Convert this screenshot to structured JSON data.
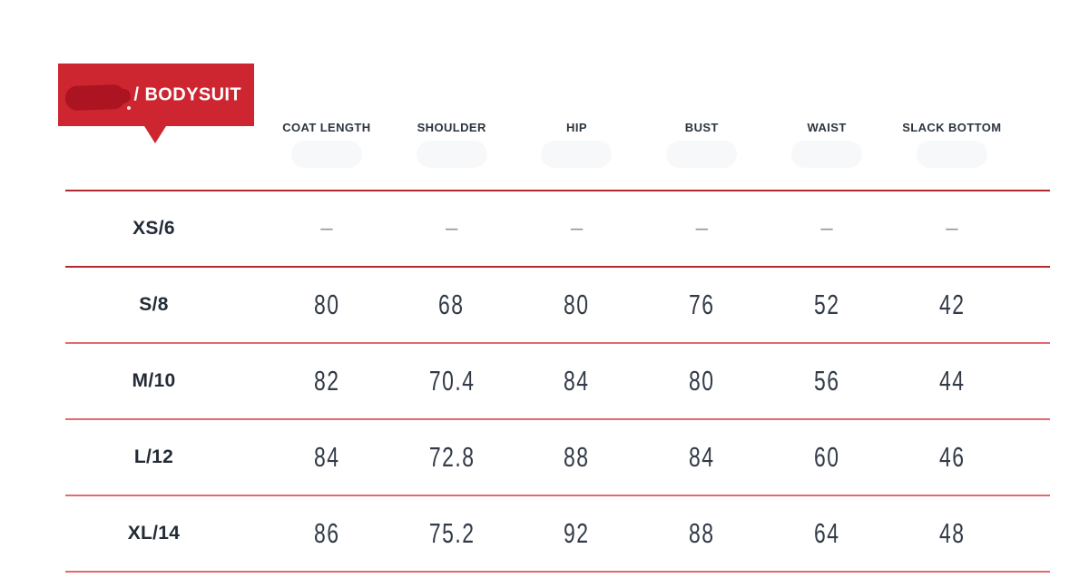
{
  "badge": {
    "label": "/ BODYSUIT",
    "background_color": "#cd2630",
    "redaction_color": "#ab1420",
    "text_color": "#ffffff"
  },
  "chart_data": {
    "type": "table",
    "title": "/ BODYSUIT size chart",
    "columns": [
      "COAT LENGTH",
      "SHOULDER",
      "HIP",
      "BUST",
      "WAIST",
      "SLACK BOTTOM"
    ],
    "row_labels": [
      "XS/6",
      "S/8",
      "M/10",
      "L/12",
      "XL/14"
    ],
    "rows": [
      [
        "–",
        "–",
        "–",
        "–",
        "–",
        "–"
      ],
      [
        "80",
        "68",
        "80",
        "76",
        "52",
        "42"
      ],
      [
        "82",
        "70.4",
        "84",
        "80",
        "56",
        "44"
      ],
      [
        "84",
        "72.8",
        "88",
        "84",
        "60",
        "46"
      ],
      [
        "86",
        "75.2",
        "92",
        "88",
        "64",
        "48"
      ]
    ],
    "layout": {
      "separator_color_top_rows": "#b32a2e",
      "separator_color_bottom_rows": "#e4696d",
      "gridlines": "horizontal-only"
    }
  }
}
